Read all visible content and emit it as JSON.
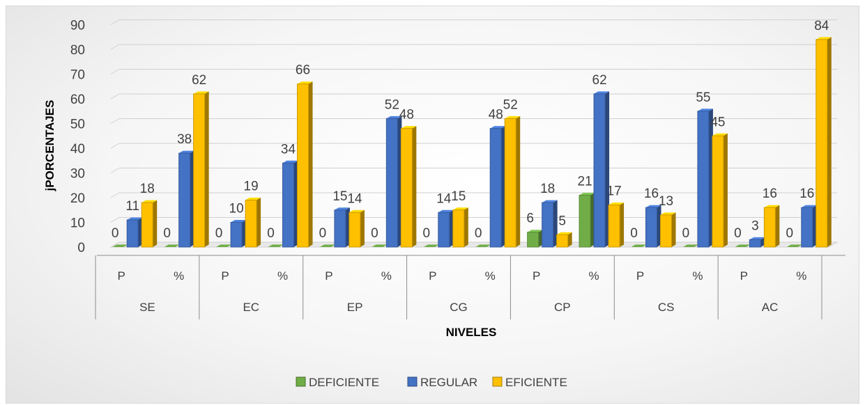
{
  "chart_data": {
    "type": "bar",
    "view": "3d-clustered-column",
    "groups": [
      "SE",
      "EC",
      "EP",
      "CG",
      "CP",
      "CS",
      "AC"
    ],
    "subcategories": [
      "P",
      "%"
    ],
    "series": [
      {
        "name": "DEFICIENTE",
        "color": "#70ad47",
        "values": [
          0,
          0,
          0,
          0,
          0,
          0,
          0,
          0,
          6,
          21,
          0,
          0,
          0,
          0
        ]
      },
      {
        "name": "REGULAR",
        "color": "#4472c4",
        "values": [
          11,
          38,
          10,
          34,
          15,
          52,
          14,
          48,
          18,
          62,
          16,
          55,
          3,
          16
        ]
      },
      {
        "name": "EFICIENTE",
        "color": "#ffc000",
        "values": [
          18,
          62,
          19,
          66,
          14,
          48,
          15,
          52,
          5,
          17,
          13,
          45,
          16,
          84
        ]
      }
    ],
    "data_labels": [
      [
        "0",
        "11",
        "18"
      ],
      [
        "0",
        "38",
        "62"
      ],
      [
        "0",
        "10",
        "19"
      ],
      [
        "0",
        "34",
        "66"
      ],
      [
        "0",
        "15",
        "14"
      ],
      [
        "0",
        "52",
        "48"
      ],
      [
        "0",
        "14",
        "15"
      ],
      [
        "0",
        "48",
        "52"
      ],
      [
        "6",
        "18",
        "5"
      ],
      [
        "",
        "62",
        ""
      ],
      [
        "0",
        "16",
        "13"
      ],
      [
        "0",
        "55",
        "45"
      ],
      [
        "0",
        "3",
        "16"
      ],
      [
        "0",
        "16",
        "84"
      ]
    ],
    "ylabel": "jPORCENTAJES",
    "xlabel": "NIVELES",
    "ylim": [
      0,
      90
    ],
    "yticks": [
      "0",
      "10",
      "20",
      "30",
      "40",
      "50",
      "60",
      "70",
      "80",
      "90"
    ],
    "grid": true,
    "legend_position": "bottom"
  },
  "extra_labels": [
    "21",
    "17"
  ]
}
